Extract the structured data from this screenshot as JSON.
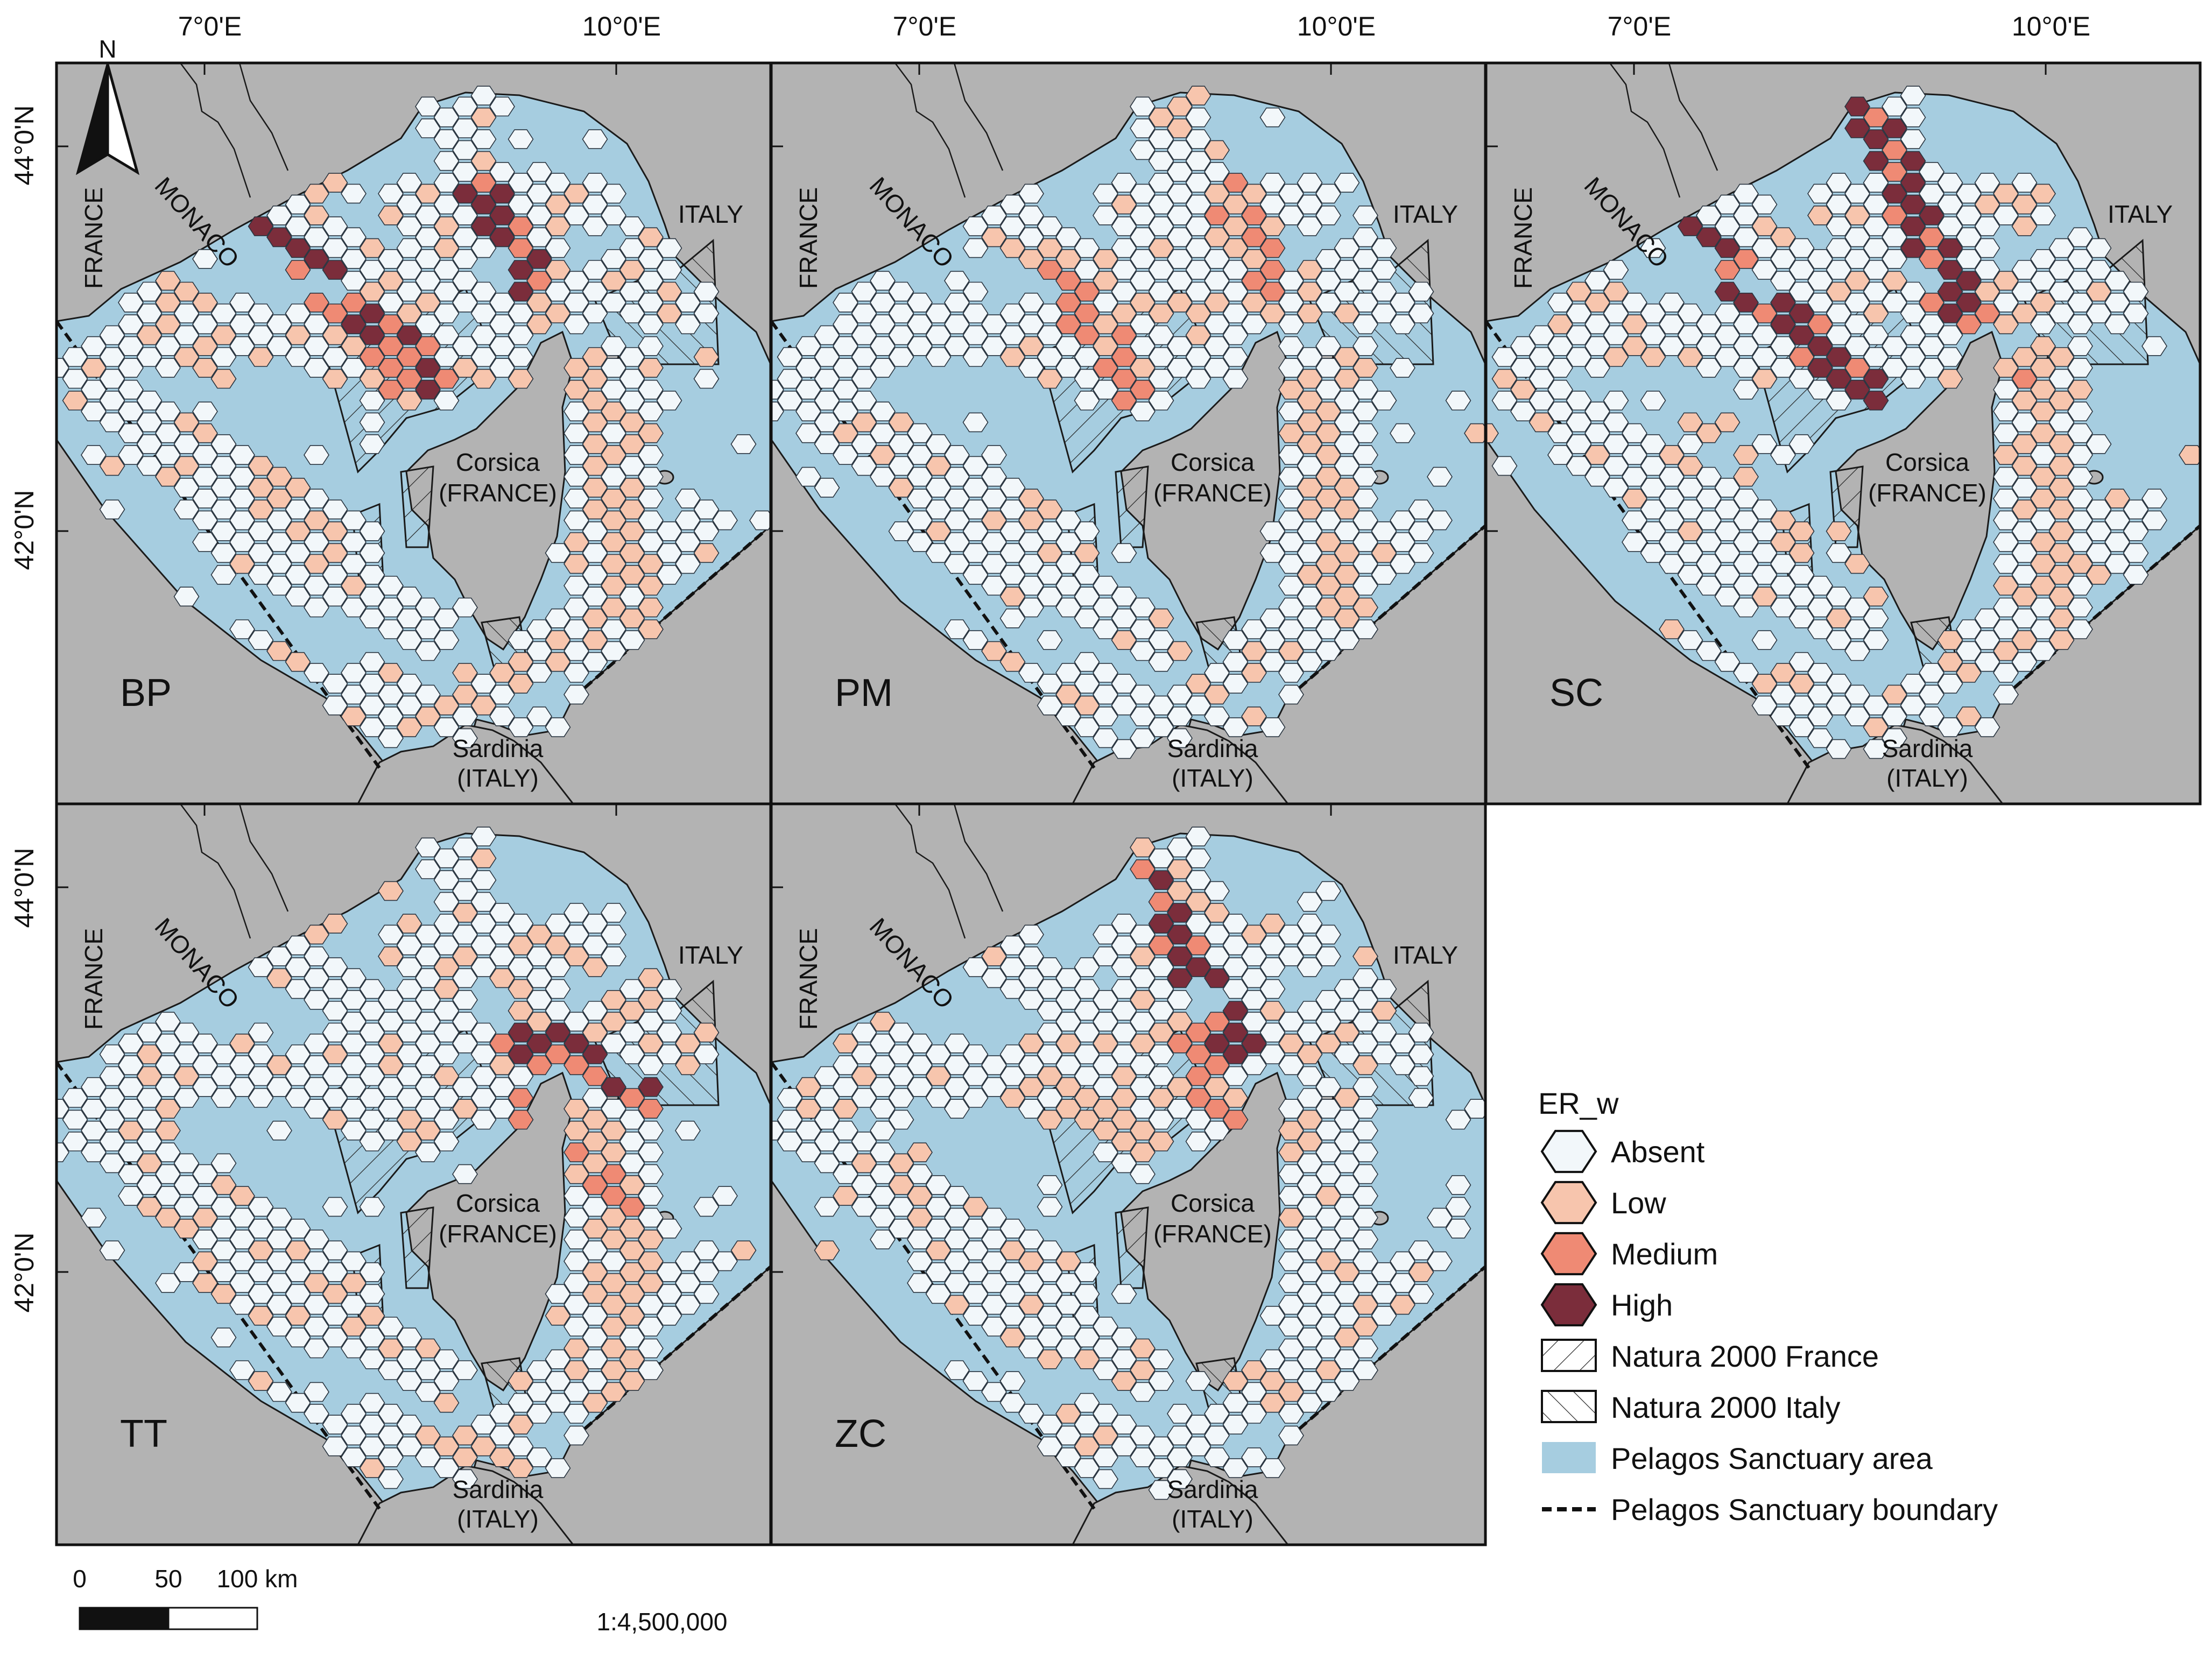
{
  "axes": {
    "lon_labels": [
      "7°0'E",
      "10°0'E"
    ],
    "lat_labels": [
      "44°0'N",
      "42°0'N"
    ]
  },
  "north_arrow": {
    "label": "N",
    "icon": "north-arrow-icon"
  },
  "place_labels": {
    "monaco": "MONACO",
    "france": "FRANCE",
    "italy": "ITALY",
    "corsica_1": "Corsica",
    "corsica_2": "(FRANCE)",
    "sardinia_1": "Sardinia",
    "sardinia_2": "(ITALY)"
  },
  "panels": [
    {
      "id": "BP",
      "label": "BP"
    },
    {
      "id": "PM",
      "label": "PM"
    },
    {
      "id": "SC",
      "label": "SC"
    },
    {
      "id": "TT",
      "label": "TT"
    },
    {
      "id": "ZC",
      "label": "ZC"
    }
  ],
  "legend": {
    "title": "ER_w",
    "classes": [
      {
        "label": "Absent",
        "color": "#f2f7fa"
      },
      {
        "label": "Low",
        "color": "#f7c5ad"
      },
      {
        "label": "Medium",
        "color": "#ef8a74"
      },
      {
        "label": "High",
        "color": "#7b2d3b"
      }
    ],
    "natura_france": "Natura 2000 France",
    "natura_italy": "Natura 2000 Italy",
    "sanctuary_area": "Pelagos Sanctuary area",
    "sanctuary_boundary": "Pelagos Sanctuary boundary"
  },
  "colors": {
    "land": "#b3b3b3",
    "sea": "#a6cde0",
    "absent": "#f2f7fa",
    "low": "#f7c5ad",
    "medium": "#ef8a74",
    "high": "#7b2d3b"
  },
  "scalebar": {
    "ticks": [
      "0",
      "50",
      "100 km"
    ],
    "ratio": "1:4,500,000"
  }
}
